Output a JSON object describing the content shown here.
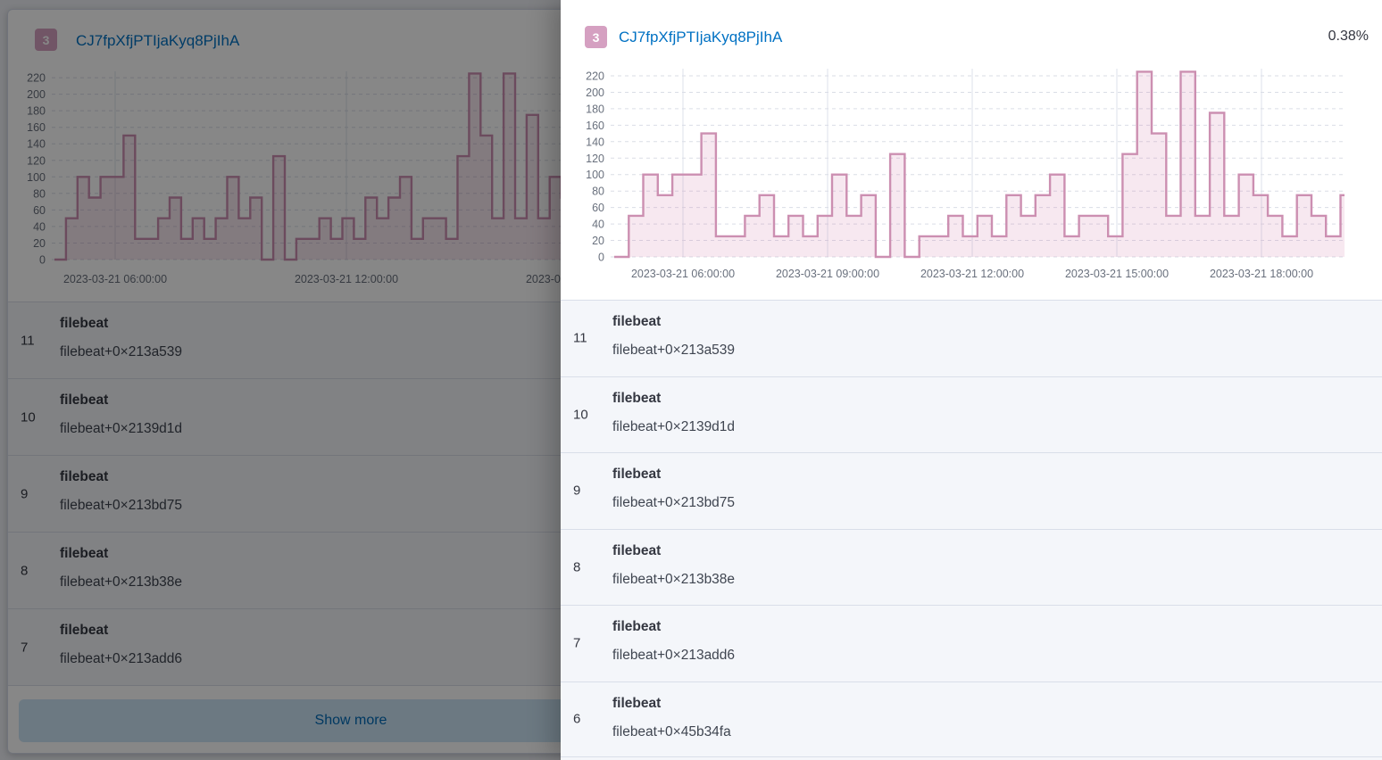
{
  "base_panel": {
    "badge": "3",
    "title": "CJ7fpXfjPTIjaKyq8PjIhA",
    "show_more_label": "Show more",
    "rows": [
      {
        "rank": "11",
        "name": "filebeat",
        "frame": "filebeat+0×213a539"
      },
      {
        "rank": "10",
        "name": "filebeat",
        "frame": "filebeat+0×2139d1d"
      },
      {
        "rank": "9",
        "name": "filebeat",
        "frame": "filebeat+0×213bd75"
      },
      {
        "rank": "8",
        "name": "filebeat",
        "frame": "filebeat+0×213b38e"
      },
      {
        "rank": "7",
        "name": "filebeat",
        "frame": "filebeat+0×213add6"
      }
    ]
  },
  "flyout": {
    "badge": "3",
    "title": "CJ7fpXfjPTIjaKyq8PjIhA",
    "percentage": "0.38%",
    "rows": [
      {
        "rank": "11",
        "name": "filebeat",
        "frame": "filebeat+0×213a539"
      },
      {
        "rank": "10",
        "name": "filebeat",
        "frame": "filebeat+0×2139d1d"
      },
      {
        "rank": "9",
        "name": "filebeat",
        "frame": "filebeat+0×213bd75"
      },
      {
        "rank": "8",
        "name": "filebeat",
        "frame": "filebeat+0×213b38e"
      },
      {
        "rank": "7",
        "name": "filebeat",
        "frame": "filebeat+0×213add6"
      },
      {
        "rank": "6",
        "name": "filebeat",
        "frame": "filebeat+0×45b34fa"
      }
    ]
  },
  "chart_data": {
    "type": "area",
    "style": "step-histogram",
    "title": "",
    "xlabel": "",
    "ylabel": "",
    "ylim": [
      0,
      230
    ],
    "grid": true,
    "y_ticks": [
      0,
      20,
      40,
      60,
      80,
      100,
      120,
      140,
      160,
      180,
      200,
      220
    ],
    "x_tick_labels_full": [
      "2023-03-21 06:00:00",
      "2023-03-21 09:00:00",
      "2023-03-21 12:00:00",
      "2023-03-21 15:00:00",
      "2023-03-21 18:00:00"
    ],
    "x_tick_labels_compact": [
      "2023-03-21 06:00:00",
      "2023-03-21 12:00:00",
      "2023-03-21 18:00:00"
    ],
    "values": [
      0,
      50,
      100,
      75,
      100,
      100,
      150,
      25,
      25,
      50,
      75,
      25,
      50,
      25,
      50,
      100,
      50,
      75,
      0,
      125,
      0,
      25,
      25,
      50,
      25,
      50,
      25,
      75,
      50,
      75,
      100,
      25,
      50,
      50,
      25,
      125,
      225,
      150,
      50,
      225,
      50,
      175,
      50,
      100,
      75,
      50,
      25,
      75,
      50,
      25,
      75
    ]
  },
  "colors": {
    "accent_pink_badge": "#d5a0c1",
    "link_blue": "#0071c3",
    "chart_stroke": "#cc8fb1",
    "chart_fill": "#cb6d9f",
    "row_background": "#f4f6fa",
    "row_separator": "#d9dee9",
    "show_more_background": "#cce4f5",
    "show_more_text": "#006bb8",
    "tick_label": "#69707d"
  }
}
